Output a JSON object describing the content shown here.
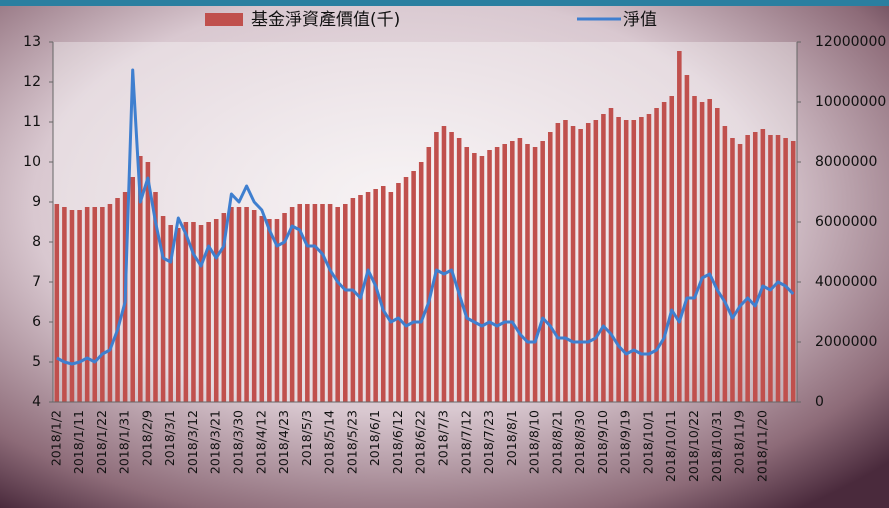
{
  "chart_data": {
    "type": "combo",
    "categories": [
      "2018/1/2",
      null,
      null,
      "2018/1/11",
      null,
      null,
      "2018/1/22",
      null,
      null,
      "2018/1/31",
      null,
      null,
      "2018/2/9",
      null,
      null,
      "2018/3/1",
      null,
      null,
      "2018/3/12",
      null,
      null,
      "2018/3/21",
      null,
      null,
      "2018/3/30",
      null,
      null,
      "2018/4/12",
      null,
      null,
      "2018/4/23",
      null,
      null,
      "2018/5/3",
      null,
      null,
      "2018/5/14",
      null,
      null,
      "2018/5/23",
      null,
      null,
      "2018/6/1",
      null,
      null,
      "2018/6/12",
      null,
      null,
      "2018/6/22",
      null,
      null,
      "2018/7/3",
      null,
      null,
      "2018/7/12",
      null,
      null,
      "2018/7/23",
      null,
      null,
      "2018/8/1",
      null,
      null,
      "2018/8/10",
      null,
      null,
      "2018/8/21",
      null,
      null,
      "2018/8/30",
      null,
      null,
      "2018/9/10",
      null,
      null,
      "2018/9/19",
      null,
      null,
      "2018/10/1",
      null,
      null,
      "2018/10/11",
      null,
      null,
      "2018/10/22",
      null,
      null,
      "2018/10/31",
      null,
      null,
      "2018/11/9",
      null,
      null,
      "2018/11/20",
      null,
      null,
      null,
      null
    ],
    "series": [
      {
        "name": "基金淨資產價值(千)",
        "type": "bar",
        "axis": "y2",
        "color": "#c0504d",
        "values": [
          6600000,
          6500000,
          6400000,
          6400000,
          6500000,
          6500000,
          6500000,
          6600000,
          6800000,
          7000000,
          7500000,
          8200000,
          8000000,
          7000000,
          6200000,
          5900000,
          5800000,
          6000000,
          6000000,
          5900000,
          6000000,
          6100000,
          6300000,
          6500000,
          6500000,
          6500000,
          6400000,
          6200000,
          6100000,
          6100000,
          6300000,
          6500000,
          6600000,
          6600000,
          6600000,
          6600000,
          6600000,
          6500000,
          6600000,
          6800000,
          6900000,
          7000000,
          7100000,
          7200000,
          7000000,
          7300000,
          7500000,
          7700000,
          8000000,
          8500000,
          9000000,
          9200000,
          9000000,
          8800000,
          8500000,
          8300000,
          8200000,
          8400000,
          8500000,
          8600000,
          8700000,
          8800000,
          8600000,
          8500000,
          8700000,
          9000000,
          9300000,
          9400000,
          9200000,
          9100000,
          9300000,
          9400000,
          9600000,
          9800000,
          9500000,
          9400000,
          9400000,
          9500000,
          9600000,
          9800000,
          10000000,
          10200000,
          11700000,
          10900000,
          10200000,
          10000000,
          10100000,
          9800000,
          9200000,
          8800000,
          8600000,
          8900000,
          9000000,
          9100000,
          8900000,
          8900000,
          8800000,
          8700000
        ]
      },
      {
        "name": "淨值",
        "type": "line",
        "color": "#3f7fcf",
        "values": [
          5.1,
          5.0,
          4.95,
          5.0,
          5.1,
          5.0,
          5.2,
          5.3,
          5.8,
          6.5,
          12.3,
          9.0,
          9.6,
          8.5,
          7.6,
          7.5,
          8.6,
          8.2,
          7.7,
          7.4,
          7.9,
          7.6,
          7.9,
          9.2,
          9.0,
          9.4,
          9.0,
          8.8,
          8.3,
          7.9,
          8.0,
          8.4,
          8.3,
          7.9,
          7.9,
          7.7,
          7.3,
          7.0,
          6.8,
          6.8,
          6.6,
          7.3,
          6.9,
          6.3,
          6.0,
          6.1,
          5.9,
          6.0,
          6.0,
          6.5,
          7.3,
          7.2,
          7.3,
          6.7,
          6.1,
          6.0,
          5.9,
          6.0,
          5.9,
          6.0,
          6.0,
          5.7,
          5.5,
          5.5,
          6.1,
          5.9,
          5.6,
          5.6,
          5.5,
          5.5,
          5.5,
          5.6,
          5.9,
          5.7,
          5.4,
          5.2,
          5.3,
          5.2,
          5.2,
          5.3,
          5.6,
          6.3,
          6.0,
          6.6,
          6.6,
          7.1,
          7.2,
          6.8,
          6.5,
          6.1,
          6.4,
          6.6,
          6.4,
          6.9,
          6.8,
          7.0,
          6.9,
          6.7
        ]
      }
    ],
    "ylim": [
      4,
      13
    ],
    "yticks": [
      4,
      5,
      6,
      7,
      8,
      9,
      10,
      11,
      12,
      13
    ],
    "y2lim": [
      0,
      12000000
    ],
    "y2ticks": [
      0,
      2000000,
      4000000,
      6000000,
      8000000,
      10000000,
      12000000
    ],
    "legend": "top"
  }
}
